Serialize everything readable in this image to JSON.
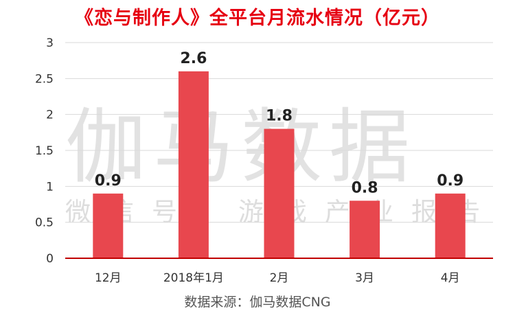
{
  "title": "《恋与制作人》全平台月流水情况（亿元）",
  "watermark": {
    "main": "伽马数据",
    "sub": "微信号：游戏产业报告"
  },
  "source": "数据来源：伽马数据CNG",
  "colors": {
    "bar": "#e8474e",
    "title": "#e60012",
    "axis": "#c00000",
    "grid": "#d9d9d9"
  },
  "chart_data": {
    "type": "bar",
    "title": "《恋与制作人》全平台月流水情况（亿元）",
    "categories": [
      "12月",
      "2018年1月",
      "2月",
      "3月",
      "4月"
    ],
    "values": [
      0.9,
      2.6,
      1.8,
      0.8,
      0.9
    ],
    "value_labels": [
      "0.9",
      "2.6",
      "1.8",
      "0.8",
      "0.9"
    ],
    "ylim": [
      0,
      3
    ],
    "yticks": [
      "0",
      "0.5",
      "1",
      "1.5",
      "2",
      "2.5",
      "3"
    ],
    "grid": true,
    "legend": "none"
  }
}
